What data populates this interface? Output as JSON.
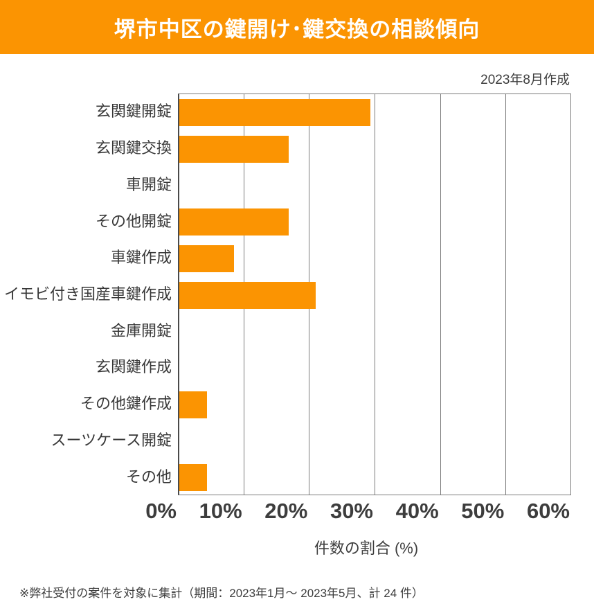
{
  "header": {
    "title": "堺市中区の鍵開け･鍵交換の相談傾向"
  },
  "meta": {
    "created": "2023年8月作成"
  },
  "chart_data": {
    "type": "bar",
    "orientation": "horizontal",
    "title": "堺市中区の鍵開け･鍵交換の相談傾向",
    "categories": [
      "玄関鍵開錠",
      "玄関鍵交換",
      "車開錠",
      "その他開錠",
      "車鍵作成",
      "イモビ付き国産車鍵作成",
      "金庫開錠",
      "玄関鍵作成",
      "その他鍵作成",
      "スーツケース開錠",
      "その他"
    ],
    "values": [
      29.2,
      16.7,
      0,
      16.7,
      8.3,
      20.8,
      0,
      0,
      4.2,
      0,
      4.2
    ],
    "xlabel": "件数の割合 (%)",
    "ylabel": "",
    "xlim": [
      0,
      60
    ],
    "xticks": [
      "0%",
      "10%",
      "20%",
      "30%",
      "40%",
      "50%",
      "60%"
    ],
    "grid": true,
    "legend": false,
    "bar_color": "#FB9402"
  },
  "footnote": {
    "text": "※弊社受付の案件を対象に集計（期間：2023年1月～ 2023年5月、計 24 件）"
  }
}
